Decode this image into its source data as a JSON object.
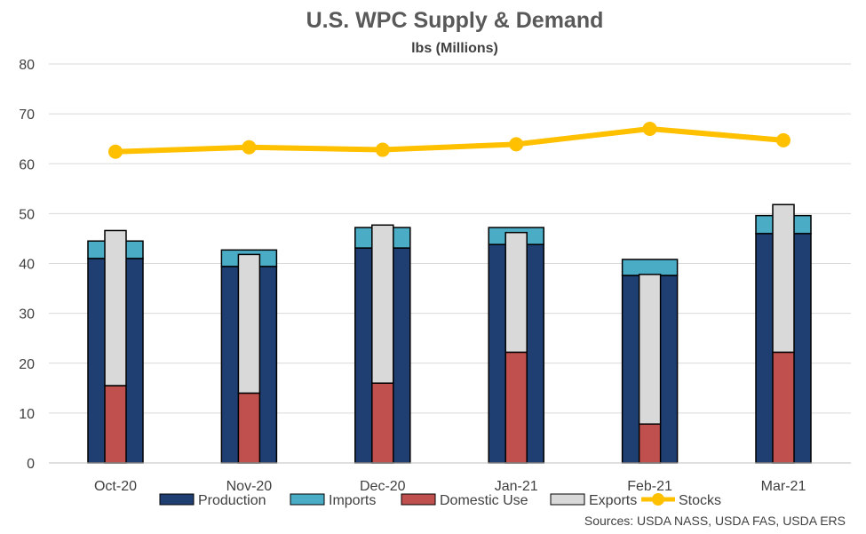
{
  "chart_data": {
    "type": "bar",
    "title": "U.S. WPC Supply & Demand",
    "subtitle": "lbs (Millions)",
    "categories": [
      "Oct-20",
      "Nov-20",
      "Dec-20",
      "Jan-21",
      "Feb-21",
      "Mar-21"
    ],
    "ylim": [
      0,
      80
    ],
    "yticks": [
      0,
      10,
      20,
      30,
      40,
      50,
      60,
      70,
      80
    ],
    "grid": true,
    "legend_position": "bottom",
    "supply_series": [
      {
        "name": "Production",
        "color": "#1F3F73",
        "values": [
          41.0,
          39.4,
          43.1,
          43.8,
          37.6,
          46.0
        ]
      },
      {
        "name": "Imports",
        "color": "#4BACC6",
        "values": [
          3.5,
          3.3,
          4.1,
          3.4,
          3.2,
          3.6
        ]
      }
    ],
    "demand_series": [
      {
        "name": "Domestic Use",
        "color": "#C0504D",
        "values": [
          15.5,
          14.0,
          16.0,
          22.2,
          7.8,
          22.2
        ]
      },
      {
        "name": "Exports",
        "color": "#D9D9D9",
        "values": [
          31.1,
          27.8,
          31.7,
          24.0,
          30.0,
          29.6
        ]
      }
    ],
    "line_series": {
      "name": "Stocks",
      "color": "#FFC000",
      "values": [
        62.4,
        63.3,
        62.8,
        63.9,
        67.0,
        64.7
      ]
    },
    "source": "Sources: USDA NASS, USDA FAS, USDA ERS"
  }
}
